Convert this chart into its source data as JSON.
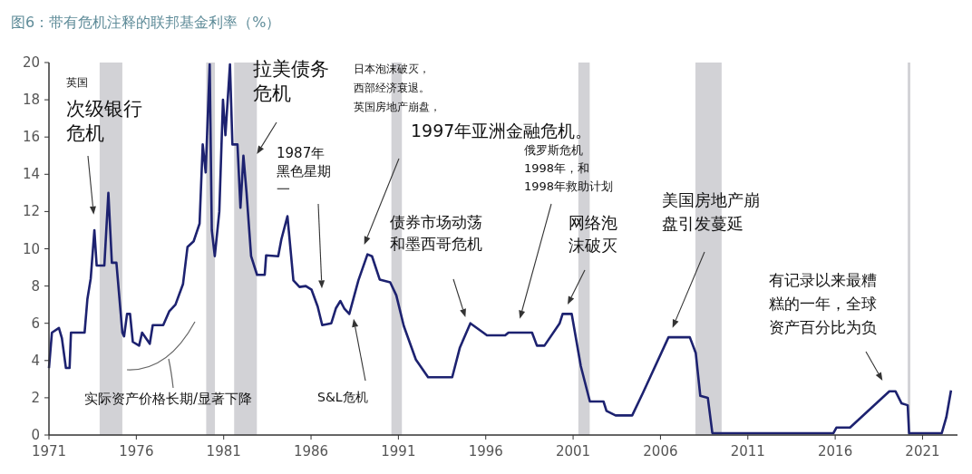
{
  "chart_data": {
    "type": "line",
    "title": "图6：带有危机注释的联邦基金利率（%）",
    "xlim": [
      1971,
      2023
    ],
    "ylim": [
      0,
      20
    ],
    "xticks": [
      1971,
      1976,
      1981,
      1986,
      1991,
      1996,
      2001,
      2006,
      2011,
      2016,
      2021
    ],
    "yticks": [
      0,
      2,
      4,
      6,
      8,
      10,
      12,
      14,
      16,
      18,
      20
    ],
    "color": "#1d2270",
    "x": [
      1971.0,
      1971.17,
      1971.57,
      1971.74,
      1971.97,
      1972.18,
      1972.26,
      1973.04,
      1973.2,
      1973.39,
      1973.6,
      1973.73,
      1974.17,
      1974.4,
      1974.6,
      1974.86,
      1975.2,
      1975.3,
      1975.47,
      1975.64,
      1975.8,
      1976.16,
      1976.33,
      1976.77,
      1976.94,
      1977.54,
      1977.89,
      1978.24,
      1978.67,
      1978.93,
      1979.28,
      1979.62,
      1979.8,
      1979.97,
      1980.2,
      1980.32,
      1980.49,
      1980.75,
      1980.96,
      1981.1,
      1981.36,
      1981.5,
      1981.79,
      1981.96,
      1982.13,
      1982.31,
      1982.57,
      1982.91,
      1983.35,
      1983.43,
      1984.12,
      1984.3,
      1984.65,
      1984.99,
      1985.34,
      1985.7,
      1986.03,
      1986.38,
      1986.64,
      1987.16,
      1987.42,
      1987.68,
      1987.9,
      1988.19,
      1988.71,
      1989.23,
      1989.49,
      1989.93,
      1990.53,
      1990.88,
      1991.31,
      1992.0,
      1992.7,
      1994.08,
      1994.52,
      1995.12,
      1996.07,
      1997.11,
      1997.3,
      1998.65,
      1998.93,
      1999.36,
      2000.23,
      2000.4,
      2000.92,
      2001.44,
      2001.96,
      2002.74,
      2002.91,
      2003.43,
      2004.38,
      2004.99,
      2006.46,
      2007.68,
      2008.02,
      2008.28,
      2008.71,
      2008.97,
      2015.9,
      2016.07,
      2016.85,
      2019.1,
      2019.45,
      2019.8,
      2020.15,
      2020.23,
      2022.1,
      2022.36,
      2022.63
    ],
    "values": [
      3.6,
      5.5,
      5.75,
      5.2,
      3.6,
      3.6,
      5.5,
      5.5,
      7.3,
      8.4,
      11.0,
      9.1,
      9.1,
      13.0,
      9.25,
      9.25,
      5.5,
      5.3,
      6.5,
      6.5,
      5.0,
      4.8,
      5.5,
      4.9,
      5.9,
      5.9,
      6.65,
      7.0,
      8.1,
      10.1,
      10.4,
      11.35,
      15.6,
      14.1,
      19.9,
      11.0,
      9.6,
      12.0,
      18.0,
      16.1,
      19.9,
      15.6,
      15.6,
      12.2,
      15.0,
      13.0,
      9.6,
      8.6,
      8.6,
      9.65,
      9.6,
      10.5,
      11.75,
      8.3,
      7.95,
      8.0,
      7.8,
      6.9,
      5.9,
      6.0,
      6.8,
      7.2,
      6.8,
      6.5,
      8.3,
      9.7,
      9.6,
      8.35,
      8.2,
      7.5,
      5.85,
      4.05,
      3.1,
      3.1,
      4.7,
      6.0,
      5.35,
      5.35,
      5.5,
      5.5,
      4.8,
      4.8,
      6.0,
      6.5,
      6.5,
      3.7,
      1.8,
      1.8,
      1.3,
      1.05,
      1.05,
      2.25,
      5.25,
      5.25,
      4.4,
      2.1,
      2.0,
      0.1,
      0.1,
      0.4,
      0.4,
      2.35,
      2.35,
      1.7,
      1.6,
      0.1,
      0.1,
      0.95,
      2.4
    ],
    "bands": [
      {
        "axis": "x",
        "from": 1973.9,
        "to": 1975.2,
        "color": "#d2d2d6"
      },
      {
        "axis": "x",
        "from": 1980.0,
        "to": 1980.5,
        "color": "#d2d2d6"
      },
      {
        "axis": "x",
        "from": 1981.6,
        "to": 1982.9,
        "color": "#d2d2d6"
      },
      {
        "axis": "x",
        "from": 1990.6,
        "to": 1991.2,
        "color": "#d2d2d6"
      },
      {
        "axis": "x",
        "from": 2001.3,
        "to": 2001.95,
        "color": "#d2d2d6"
      },
      {
        "axis": "x",
        "from": 2008.0,
        "to": 2009.5,
        "color": "#d2d2d6"
      },
      {
        "axis": "x",
        "from": 2020.15,
        "to": 2020.3,
        "color": "#d2d2d6"
      }
    ],
    "annotations": [
      "英国",
      "次级银行危机",
      "拉美债务危机",
      "1987年黑色星期一",
      "日本泡沫破灭，西部经济衰退。英国房地产崩盘，",
      "1997年亚洲金融危机。",
      "俄罗斯危机1998年，和1998年救助计划",
      "债券市场动荡和墨西哥危机",
      "网络泡沫破灭",
      "S&L危机",
      "美国房地产崩盘引发蔓延",
      "有记录以来最糟糕的一年，全球资产百分比为负",
      "实际资产价格长期/显著下降"
    ]
  }
}
